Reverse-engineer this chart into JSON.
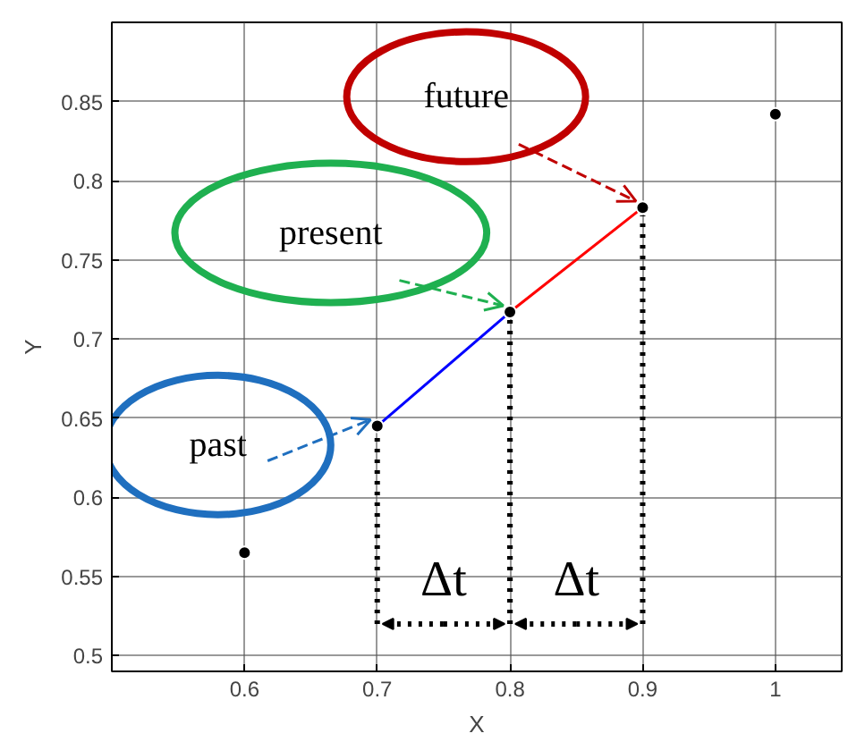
{
  "chart_data": {
    "type": "scatter",
    "xlabel": "X",
    "ylabel": "Y",
    "xlim": [
      0.5,
      1.05
    ],
    "ylim": [
      0.49,
      0.9
    ],
    "xticks": [
      0.6,
      0.7,
      0.8,
      0.9,
      1
    ],
    "yticks": [
      0.5,
      0.55,
      0.6,
      0.65,
      0.7,
      0.75,
      0.8,
      0.85
    ],
    "grid": true,
    "series": [
      {
        "marker": "circle",
        "color": "#000000",
        "x": [
          0.6,
          0.7,
          0.8,
          0.9,
          1.0
        ],
        "values": [
          0.565,
          0.645,
          0.717,
          0.783,
          0.842
        ]
      },
      {
        "type": "line",
        "marker": "none",
        "color": "#0000ff",
        "x": [
          0.7,
          0.8
        ],
        "values": [
          0.645,
          0.717
        ]
      },
      {
        "type": "line",
        "marker": "none",
        "color": "#ff0000",
        "x": [
          0.8,
          0.9
        ],
        "values": [
          0.717,
          0.783
        ]
      }
    ],
    "annotations": [
      {
        "text": "past",
        "x": 0.7,
        "y": 0.645
      },
      {
        "text": "present",
        "x": 0.8,
        "y": 0.717
      },
      {
        "text": "future",
        "x": 0.9,
        "y": 0.783
      },
      {
        "text": "Δt",
        "x": 0.7,
        "y": 0.645
      },
      "Δt"
    ]
  }
}
